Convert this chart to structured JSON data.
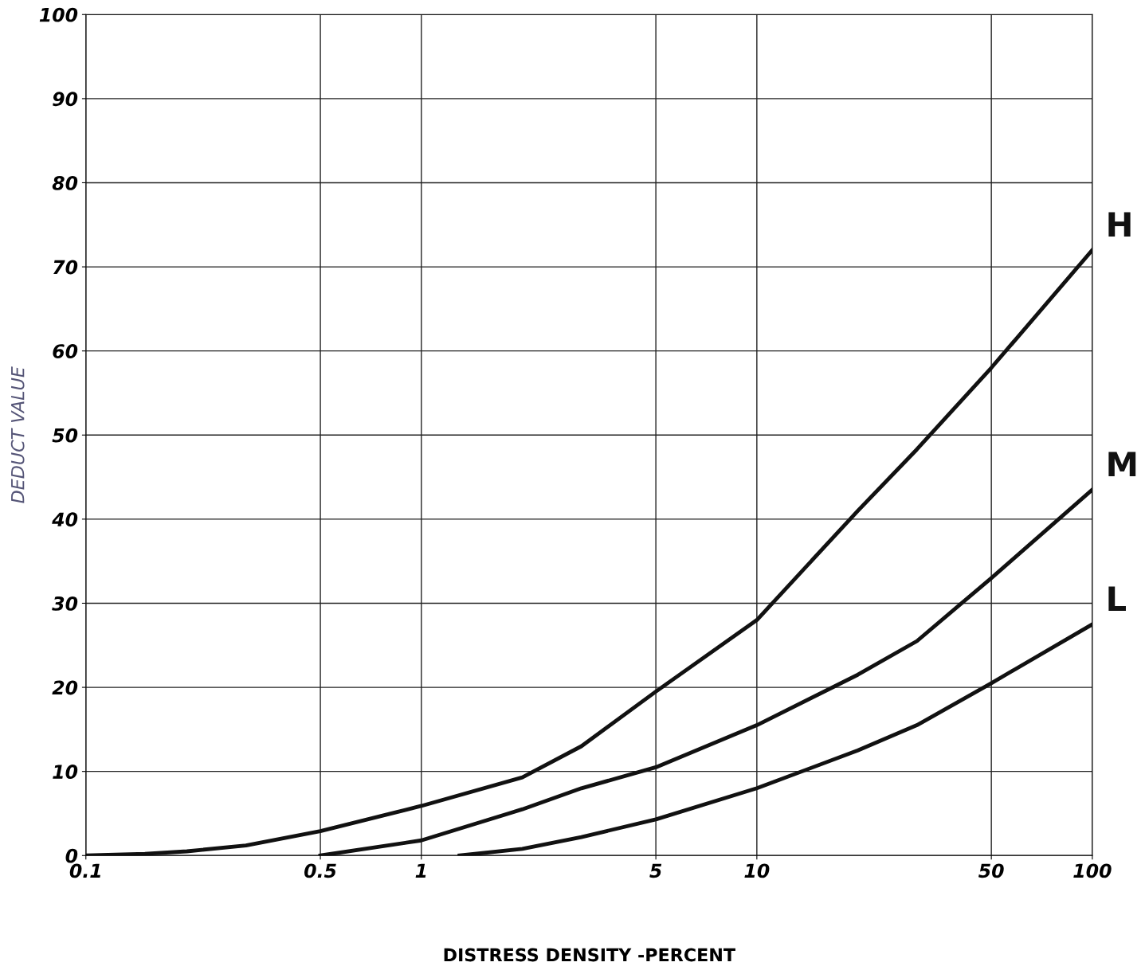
{
  "chart_data": {
    "type": "line",
    "xlabel": "DISTRESS DENSITY -PERCENT",
    "ylabel": "DEDUCT VALUE",
    "log": "x",
    "grid": true,
    "legend": false,
    "marker": "none",
    "line_style": "solid",
    "xlim": [
      0.1,
      100
    ],
    "xticks": [
      0.1,
      0.5,
      1,
      5,
      10,
      50,
      100
    ],
    "ylim": [
      0,
      100
    ],
    "yticks": [
      0,
      10,
      20,
      30,
      40,
      50,
      60,
      70,
      80,
      90,
      100
    ],
    "series": [
      {
        "name": "H",
        "color": "#111111",
        "x": [
          0.1,
          0.15,
          0.2,
          0.3,
          0.5,
          1,
          2,
          3,
          5,
          10,
          20,
          30,
          50,
          100
        ],
        "values": [
          0,
          0.2,
          0.5,
          1.2,
          2.9,
          5.9,
          9.3,
          13,
          19.5,
          28,
          41,
          48.3,
          58,
          72
        ]
      },
      {
        "name": "M",
        "color": "#111111",
        "x": [
          0.5,
          1,
          2,
          3,
          5,
          10,
          20,
          30,
          50,
          100
        ],
        "values": [
          0,
          1.8,
          5.5,
          8,
          10.5,
          15.5,
          21.5,
          25.5,
          33,
          43.5
        ]
      },
      {
        "name": "L",
        "color": "#111111",
        "x": [
          1.3,
          2,
          3,
          5,
          10,
          20,
          30,
          50,
          100
        ],
        "values": [
          0,
          0.8,
          2.2,
          4.3,
          8,
          12.5,
          15.5,
          20.5,
          27.5
        ]
      }
    ]
  }
}
